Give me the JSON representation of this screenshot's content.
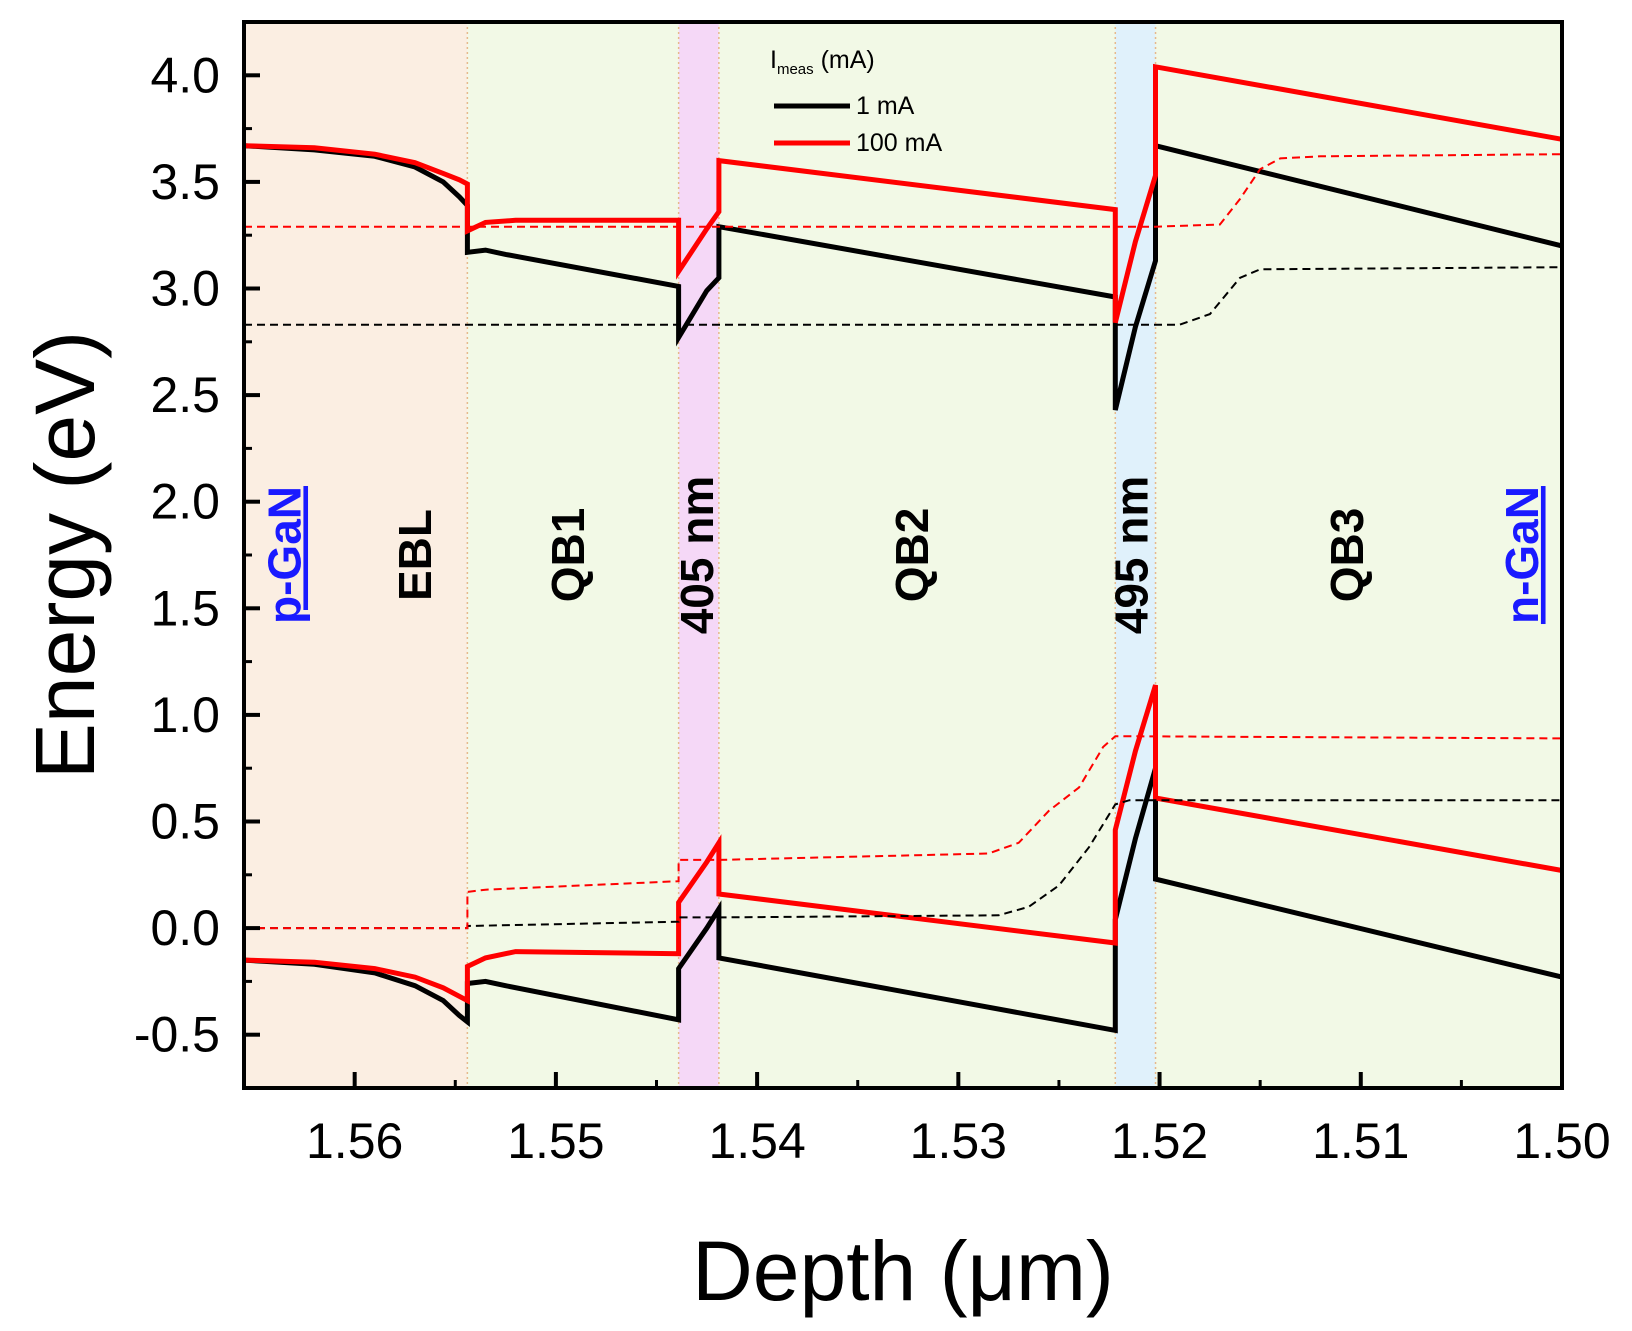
{
  "chart_data": {
    "type": "line",
    "xlabel": "Depth (μm)",
    "ylabel": "Energy (eV)",
    "xlim": [
      1.5655,
      1.5
    ],
    "ylim": [
      -0.75,
      4.25
    ],
    "x_reversed": true,
    "x_ticks": [
      1.56,
      1.55,
      1.54,
      1.53,
      1.52,
      1.51,
      1.5
    ],
    "x_tick_labels": [
      "1.56",
      "1.55",
      "1.54",
      "1.53",
      "1.52",
      "1.51",
      "1.50"
    ],
    "y_ticks": [
      -0.5,
      0,
      0.5,
      1,
      1.5,
      2,
      2.5,
      3,
      3.5,
      4
    ],
    "y_tick_labels": [
      "-0.5",
      "0.0",
      "0.5",
      "1.0",
      "1.5",
      "2.0",
      "2.5",
      "3.0",
      "3.5",
      "4.0"
    ],
    "legend": {
      "title_main": "I",
      "title_sub": "meas",
      "title_rest": " (mA)",
      "placement": "top-center",
      "entries": [
        {
          "label": "1 mA",
          "color": "#000000"
        },
        {
          "label": "100 mA",
          "color": "#ff0000"
        }
      ]
    },
    "regions": [
      {
        "label": "p-GaN",
        "x0": 1.5655,
        "x1": 1.5544,
        "fill": "#fbeee2",
        "label_x": 1.5633,
        "label_color": "#1a1aff",
        "underline": true
      },
      {
        "label": "EBL",
        "x0": 1.5655,
        "x1": 1.5544,
        "fill": "#fbeee2",
        "label_x": 1.5568,
        "label_color": "#000000",
        "underline": false
      },
      {
        "label": "QB1",
        "x0": 1.5544,
        "x1": 1.5439,
        "fill": "#f2f9e6",
        "label_x": 1.5492,
        "label_color": "#000000",
        "underline": false
      },
      {
        "label": "405 nm",
        "x0": 1.5439,
        "x1": 1.5419,
        "fill": "#f5d8f7",
        "label_x": 1.5428,
        "label_color": "#000000",
        "underline": false
      },
      {
        "label": "QB2",
        "x0": 1.5419,
        "x1": 1.5222,
        "fill": "#f2f9e6",
        "label_x": 1.5321,
        "label_color": "#000000",
        "underline": false
      },
      {
        "label": "495 nm",
        "x0": 1.5222,
        "x1": 1.5202,
        "fill": "#e0f1fb",
        "label_x": 1.5212,
        "label_color": "#000000",
        "underline": false
      },
      {
        "label": "QB3",
        "x0": 1.5202,
        "x1": 1.5,
        "fill": "#f2f9e6",
        "label_x": 1.5105,
        "label_color": "#000000",
        "underline": false
      },
      {
        "label": "n-GaN",
        "x0": 1.5202,
        "x1": 1.5,
        "fill": "#f2f9e6",
        "label_x": 1.5018,
        "label_color": "#1a1aff",
        "underline": true
      }
    ],
    "boundaries": [
      1.5544,
      1.5439,
      1.5419,
      1.5222,
      1.5202
    ],
    "series": [
      {
        "name": "1 mA",
        "color": "#000000",
        "style": "solid",
        "points": [
          [
            1.5655,
            3.67
          ],
          [
            1.562,
            3.65
          ],
          [
            1.559,
            3.62
          ],
          [
            1.557,
            3.57
          ],
          [
            1.5556,
            3.5
          ],
          [
            1.5548,
            3.43
          ],
          [
            1.5544,
            3.39
          ],
          [
            1.5544,
            3.17
          ],
          [
            1.5535,
            3.18
          ],
          [
            1.5525,
            3.16
          ],
          [
            1.5439,
            3.01
          ],
          [
            1.5439,
            2.77
          ],
          [
            1.5425,
            2.99
          ],
          [
            1.5419,
            3.05
          ],
          [
            1.5419,
            3.29
          ],
          [
            1.5222,
            2.96
          ],
          [
            1.5222,
            2.43
          ],
          [
            1.5212,
            2.82
          ],
          [
            1.5202,
            3.13
          ],
          [
            1.5202,
            3.67
          ],
          [
            1.5,
            3.2
          ]
        ]
      },
      {
        "name": "1 mA",
        "color": "#000000",
        "style": "solid",
        "points": [
          [
            1.5655,
            -0.15
          ],
          [
            1.562,
            -0.17
          ],
          [
            1.559,
            -0.21
          ],
          [
            1.557,
            -0.27
          ],
          [
            1.5556,
            -0.34
          ],
          [
            1.5548,
            -0.41
          ],
          [
            1.5544,
            -0.44
          ],
          [
            1.5544,
            -0.26
          ],
          [
            1.5535,
            -0.25
          ],
          [
            1.5525,
            -0.27
          ],
          [
            1.5439,
            -0.43
          ],
          [
            1.5439,
            -0.19
          ],
          [
            1.5425,
            0.0
          ],
          [
            1.5419,
            0.09
          ],
          [
            1.5419,
            -0.14
          ],
          [
            1.5222,
            -0.48
          ],
          [
            1.5222,
            0.04
          ],
          [
            1.5212,
            0.42
          ],
          [
            1.5202,
            0.75
          ],
          [
            1.5202,
            0.23
          ],
          [
            1.5,
            -0.23
          ]
        ]
      },
      {
        "name": "100 mA",
        "color": "#ff0000",
        "style": "solid",
        "points": [
          [
            1.5655,
            3.67
          ],
          [
            1.562,
            3.66
          ],
          [
            1.559,
            3.63
          ],
          [
            1.557,
            3.59
          ],
          [
            1.5556,
            3.54
          ],
          [
            1.5548,
            3.51
          ],
          [
            1.5544,
            3.49
          ],
          [
            1.5544,
            3.27
          ],
          [
            1.5535,
            3.31
          ],
          [
            1.552,
            3.32
          ],
          [
            1.5439,
            3.32
          ],
          [
            1.5439,
            3.08
          ],
          [
            1.5425,
            3.28
          ],
          [
            1.5419,
            3.36
          ],
          [
            1.5419,
            3.6
          ],
          [
            1.5222,
            3.37
          ],
          [
            1.5222,
            2.84
          ],
          [
            1.5212,
            3.22
          ],
          [
            1.5202,
            3.53
          ],
          [
            1.5202,
            4.04
          ],
          [
            1.5,
            3.7
          ]
        ]
      },
      {
        "name": "100 mA",
        "color": "#ff0000",
        "style": "solid",
        "points": [
          [
            1.5655,
            -0.15
          ],
          [
            1.562,
            -0.16
          ],
          [
            1.559,
            -0.19
          ],
          [
            1.557,
            -0.23
          ],
          [
            1.5556,
            -0.28
          ],
          [
            1.5548,
            -0.32
          ],
          [
            1.5544,
            -0.34
          ],
          [
            1.5544,
            -0.18
          ],
          [
            1.5535,
            -0.14
          ],
          [
            1.552,
            -0.11
          ],
          [
            1.5439,
            -0.12
          ],
          [
            1.5439,
            0.12
          ],
          [
            1.5425,
            0.31
          ],
          [
            1.5419,
            0.4
          ],
          [
            1.5419,
            0.16
          ],
          [
            1.5222,
            -0.07
          ],
          [
            1.5222,
            0.46
          ],
          [
            1.5212,
            0.83
          ],
          [
            1.5202,
            1.14
          ],
          [
            1.5202,
            0.61
          ],
          [
            1.5,
            0.27
          ]
        ]
      },
      {
        "name": "1 mA",
        "color": "#000000",
        "style": "dashed",
        "points": [
          [
            1.5655,
            2.83
          ],
          [
            1.5222,
            2.83
          ],
          [
            1.519,
            2.83
          ],
          [
            1.5175,
            2.88
          ],
          [
            1.516,
            3.05
          ],
          [
            1.515,
            3.09
          ],
          [
            1.5,
            3.1
          ]
        ]
      },
      {
        "name": "1 mA",
        "color": "#000000",
        "style": "dashed",
        "points": [
          [
            1.5655,
            0.0
          ],
          [
            1.5544,
            0.0
          ],
          [
            1.5544,
            0.01
          ],
          [
            1.5439,
            0.03
          ],
          [
            1.5439,
            0.05
          ],
          [
            1.5419,
            0.05
          ],
          [
            1.528,
            0.06
          ],
          [
            1.5265,
            0.1
          ],
          [
            1.525,
            0.2
          ],
          [
            1.5235,
            0.38
          ],
          [
            1.5222,
            0.58
          ],
          [
            1.5215,
            0.6
          ],
          [
            1.5,
            0.6
          ]
        ]
      },
      {
        "name": "100 mA",
        "color": "#ff0000",
        "style": "dashed",
        "points": [
          [
            1.5655,
            3.29
          ],
          [
            1.5202,
            3.29
          ],
          [
            1.517,
            3.3
          ],
          [
            1.516,
            3.42
          ],
          [
            1.515,
            3.56
          ],
          [
            1.514,
            3.61
          ],
          [
            1.512,
            3.62
          ],
          [
            1.5,
            3.63
          ]
        ]
      },
      {
        "name": "100 mA",
        "color": "#ff0000",
        "style": "dashed",
        "points": [
          [
            1.5655,
            0.0
          ],
          [
            1.5544,
            0.0
          ],
          [
            1.5544,
            0.17
          ],
          [
            1.5535,
            0.18
          ],
          [
            1.5439,
            0.22
          ],
          [
            1.5439,
            0.32
          ],
          [
            1.5419,
            0.32
          ],
          [
            1.5285,
            0.35
          ],
          [
            1.527,
            0.4
          ],
          [
            1.5255,
            0.55
          ],
          [
            1.524,
            0.66
          ],
          [
            1.5228,
            0.85
          ],
          [
            1.5222,
            0.9
          ],
          [
            1.5,
            0.89
          ]
        ]
      }
    ]
  }
}
